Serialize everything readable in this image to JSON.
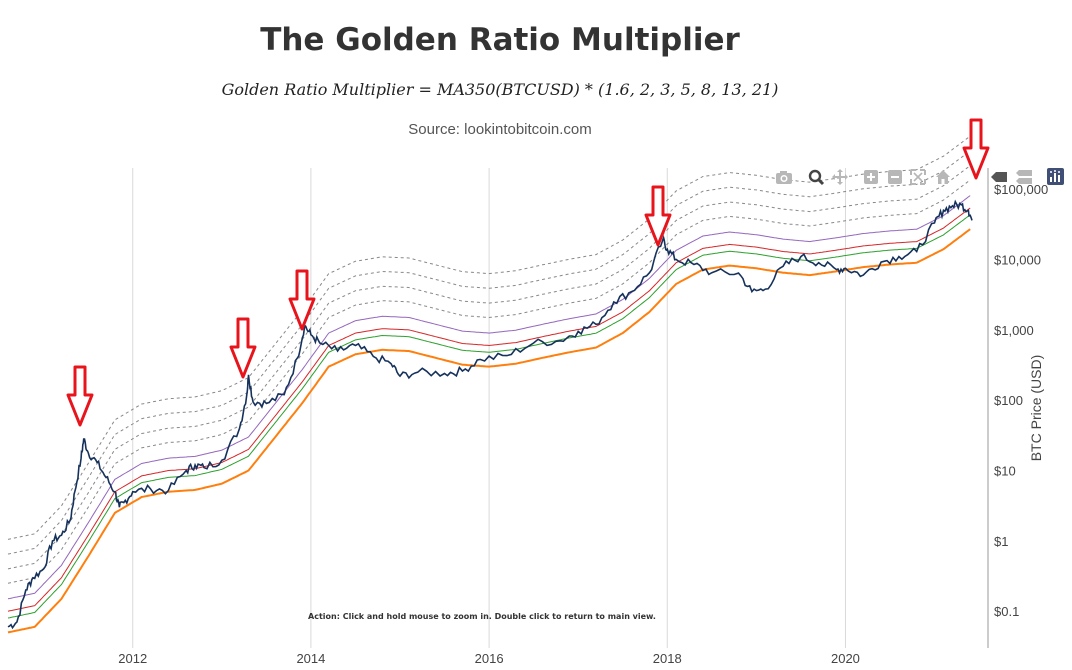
{
  "header": {
    "title": "The Golden Ratio Multiplier",
    "formula": "Golden Ratio Multiplier = MA350(BTCUSD) * (1.6, 2, 3, 5, 8, 13, 21)",
    "source": "Source: lookintobitcoin.com"
  },
  "annotation": "Action: Click and hold mouse to zoom in.  Double click to return to main view.",
  "modebar": [
    "camera-icon",
    "zoom-icon",
    "pan-icon",
    "zoom-in-icon",
    "zoom-out-icon",
    "autoscale-icon",
    "home-icon",
    "hover-closest-icon",
    "hover-compare-icon",
    "plotly-logo-icon"
  ],
  "colors": {
    "price": "#16325c",
    "ma350": "#ff7f0e",
    "x1_6": "#2ca02c",
    "x2": "#d62728",
    "x3": "#9467bd",
    "higher": "#888888",
    "arrow": "#e8141c"
  },
  "chart_data": {
    "type": "line",
    "title": "The Golden Ratio Multiplier",
    "ylabel": "BTC Price (USD)",
    "yscale": "log",
    "ylim": [
      0.03,
      200000
    ],
    "xlim": [
      2010.6,
      2021.6
    ],
    "x_ticks": [
      2012,
      2014,
      2016,
      2018,
      2020
    ],
    "x_tick_labels": [
      "2012",
      "2014",
      "2016",
      "2018",
      "2020"
    ],
    "y_ticks": [
      0.1,
      1,
      10,
      100,
      1000,
      10000,
      100000
    ],
    "y_tick_labels": [
      "$0.1",
      "$1",
      "$10",
      "$100",
      "$1,000",
      "$10,000",
      "$100,000"
    ],
    "multipliers": [
      1.6,
      2,
      3,
      5,
      8,
      13,
      21
    ],
    "series": [
      {
        "name": "BTC Price",
        "x": [
          2010.6,
          2010.7,
          2010.8,
          2010.88,
          2011.0,
          2011.1,
          2011.2,
          2011.3,
          2011.35,
          2011.42,
          2011.45,
          2011.5,
          2011.6,
          2011.7,
          2011.8,
          2011.85,
          2011.9,
          2012.0,
          2012.2,
          2012.4,
          2012.6,
          2012.7,
          2012.8,
          2013.0,
          2013.2,
          2013.28,
          2013.3,
          2013.35,
          2013.5,
          2013.7,
          2013.85,
          2013.93,
          2014.0,
          2014.1,
          2014.3,
          2014.5,
          2014.7,
          2014.9,
          2015.0,
          2015.2,
          2015.5,
          2015.7,
          2015.9,
          2016.2,
          2016.5,
          2016.8,
          2017.0,
          2017.2,
          2017.4,
          2017.6,
          2017.8,
          2017.95,
          2018.0,
          2018.1,
          2018.3,
          2018.5,
          2018.8,
          2018.95,
          2019.1,
          2019.3,
          2019.5,
          2019.7,
          2019.9,
          2020.0,
          2020.2,
          2020.4,
          2020.6,
          2020.8,
          2021.0,
          2021.1,
          2021.2,
          2021.3,
          2021.38,
          2021.42
        ],
        "values": [
          0.06,
          0.07,
          0.2,
          0.3,
          0.4,
          1.0,
          1.2,
          2.0,
          5,
          15,
          28,
          18,
          13,
          8,
          5,
          3,
          3.5,
          5,
          5.5,
          5.2,
          10,
          12,
          11,
          14,
          40,
          120,
          230,
          95,
          90,
          120,
          400,
          1150,
          850,
          650,
          500,
          600,
          420,
          330,
          220,
          250,
          240,
          260,
          380,
          430,
          650,
          700,
          950,
          1200,
          2500,
          3500,
          6500,
          19000,
          14000,
          10000,
          8500,
          6500,
          6400,
          3500,
          3800,
          8000,
          11000,
          9000,
          7200,
          7500,
          6000,
          9200,
          11000,
          13000,
          33000,
          50000,
          58000,
          60000,
          50000,
          36000
        ]
      },
      {
        "name": "350 DMA",
        "x": [
          2010.6,
          2010.9,
          2011.2,
          2011.5,
          2011.8,
          2012.1,
          2012.4,
          2012.7,
          2013.0,
          2013.3,
          2013.6,
          2013.9,
          2014.2,
          2014.5,
          2014.8,
          2015.1,
          2015.4,
          2015.7,
          2016.0,
          2016.3,
          2016.6,
          2016.9,
          2017.2,
          2017.5,
          2017.8,
          2018.1,
          2018.4,
          2018.7,
          2019.0,
          2019.3,
          2019.6,
          2019.9,
          2020.2,
          2020.5,
          2020.8,
          2021.1,
          2021.4
        ],
        "values": [
          0.05,
          0.06,
          0.15,
          0.6,
          2.5,
          4.2,
          5.0,
          5.3,
          6.5,
          10,
          30,
          90,
          300,
          450,
          520,
          500,
          400,
          320,
          300,
          330,
          400,
          480,
          560,
          900,
          1800,
          4500,
          7200,
          8200,
          7500,
          6500,
          6000,
          6800,
          7800,
          8500,
          9000,
          14000,
          27000
        ]
      }
    ],
    "peaks_marked": [
      "2011",
      "2013 (Apr)",
      "2013 (Dec)",
      "2017 (Dec)",
      "2021"
    ]
  }
}
